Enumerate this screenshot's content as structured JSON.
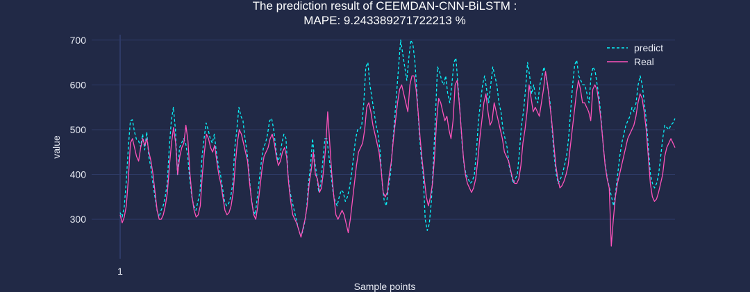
{
  "colors": {
    "background": "#212946",
    "grid": "#2e3a66",
    "predict": "#08f7fe",
    "real": "#fe53bb"
  },
  "chart_data": {
    "type": "line",
    "title_line1": "The prediction result of CEEMDAN-CNN-BiLSTM :",
    "title_line2": "MAPE: 9.243389271722213 %",
    "xlabel": "Sample points",
    "ylabel": "value",
    "x_tick_labels": [
      "1"
    ],
    "y_ticks": [
      300,
      400,
      500,
      600,
      700
    ],
    "xlim": [
      1,
      320
    ],
    "ylim": [
      212,
      712
    ],
    "grid": true,
    "legend_position": "top-right",
    "series": [
      {
        "name": "predict",
        "style": "dashed",
        "values": [
          315,
          305,
          328,
          385,
          460,
          520,
          522,
          495,
          478,
          475,
          462,
          490,
          455,
          495,
          440,
          415,
          380,
          350,
          320,
          305,
          320,
          330,
          350,
          380,
          460,
          520,
          550,
          500,
          400,
          460,
          470,
          480,
          470,
          440,
          390,
          350,
          330,
          320,
          340,
          360,
          440,
          480,
          515,
          500,
          480,
          470,
          490,
          450,
          420,
          400,
          370,
          340,
          330,
          335,
          350,
          380,
          460,
          500,
          550,
          530,
          520,
          480,
          450,
          400,
          350,
          320,
          310,
          350,
          390,
          430,
          460,
          470,
          490,
          520,
          525,
          500,
          460,
          430,
          440,
          470,
          490,
          480,
          400,
          360,
          340,
          320,
          300,
          280,
          265,
          270,
          290,
          320,
          380,
          420,
          480,
          430,
          400,
          360,
          380,
          430,
          480,
          480,
          440,
          400,
          360,
          340,
          330,
          350,
          365,
          360,
          340,
          350,
          370,
          400,
          440,
          480,
          500,
          500,
          510,
          560,
          640,
          650,
          600,
          570,
          540,
          510,
          490,
          450,
          380,
          340,
          330,
          370,
          400,
          460,
          520,
          580,
          640,
          700,
          670,
          640,
          610,
          660,
          700,
          690,
          650,
          580,
          500,
          440,
          400,
          300,
          275,
          290,
          340,
          430,
          530,
          640,
          630,
          610,
          600,
          620,
          580,
          560,
          600,
          650,
          660,
          600,
          540,
          470,
          420,
          400,
          390,
          380,
          385,
          400,
          450,
          520,
          560,
          600,
          620,
          590,
          560,
          600,
          640,
          620,
          600,
          560,
          540,
          500,
          480,
          460,
          420,
          400,
          380,
          390,
          400,
          450,
          510,
          540,
          590,
          650,
          620,
          580,
          600,
          570,
          560,
          600,
          620,
          640,
          620,
          590,
          560,
          500,
          440,
          400,
          380,
          390,
          400,
          420,
          440,
          480,
          540,
          600,
          645,
          655,
          620,
          610,
          600,
          600,
          580,
          560,
          620,
          640,
          630,
          600,
          570,
          520,
          460,
          420,
          390,
          370,
          350,
          330,
          360,
          400,
          440,
          470,
          490,
          510,
          520,
          530,
          550,
          540,
          560,
          600,
          620,
          600,
          560,
          520,
          460,
          400,
          380,
          370,
          380,
          400,
          440,
          480,
          510,
          505,
          500,
          510,
          515,
          525
        ]
      },
      {
        "name": "Real",
        "style": "solid",
        "values": [
          310,
          292,
          305,
          330,
          390,
          470,
          480,
          460,
          440,
          430,
          460,
          480,
          465,
          480,
          450,
          430,
          400,
          360,
          320,
          300,
          300,
          310,
          330,
          360,
          420,
          470,
          505,
          470,
          400,
          440,
          460,
          470,
          510,
          475,
          400,
          350,
          320,
          305,
          310,
          330,
          400,
          450,
          490,
          480,
          460,
          450,
          465,
          430,
          400,
          380,
          350,
          320,
          310,
          315,
          330,
          360,
          420,
          470,
          500,
          490,
          470,
          450,
          430,
          380,
          340,
          310,
          300,
          330,
          370,
          410,
          440,
          450,
          460,
          480,
          490,
          470,
          440,
          420,
          430,
          450,
          460,
          440,
          380,
          340,
          310,
          300,
          290,
          275,
          260,
          280,
          300,
          330,
          380,
          410,
          450,
          400,
          390,
          360,
          370,
          410,
          460,
          540,
          470,
          400,
          350,
          310,
          300,
          310,
          320,
          310,
          290,
          270,
          300,
          340,
          380,
          420,
          450,
          460,
          470,
          500,
          550,
          560,
          540,
          510,
          490,
          470,
          450,
          410,
          360,
          350,
          360,
          400,
          430,
          480,
          520,
          560,
          590,
          600,
          580,
          560,
          540,
          600,
          620,
          620,
          590,
          540,
          480,
          430,
          390,
          350,
          330,
          350,
          380,
          440,
          520,
          570,
          560,
          540,
          520,
          530,
          500,
          480,
          520,
          600,
          610,
          560,
          500,
          440,
          400,
          380,
          370,
          360,
          370,
          390,
          430,
          480,
          520,
          560,
          580,
          540,
          510,
          520,
          560,
          540,
          520,
          500,
          480,
          450,
          440,
          430,
          410,
          390,
          380,
          380,
          390,
          420,
          470,
          500,
          540,
          600,
          570,
          540,
          550,
          540,
          530,
          560,
          590,
          630,
          600,
          560,
          520,
          470,
          420,
          390,
          370,
          375,
          385,
          400,
          420,
          460,
          500,
          540,
          580,
          610,
          590,
          560,
          560,
          550,
          540,
          520,
          590,
          600,
          590,
          560,
          520,
          470,
          420,
          390,
          370,
          240,
          300,
          350,
          380,
          400,
          420,
          440,
          460,
          480,
          490,
          500,
          510,
          530,
          560,
          580,
          570,
          540,
          500,
          440,
          380,
          350,
          340,
          345,
          360,
          380,
          400,
          440,
          460,
          470,
          480,
          470,
          460
        ]
      }
    ]
  }
}
